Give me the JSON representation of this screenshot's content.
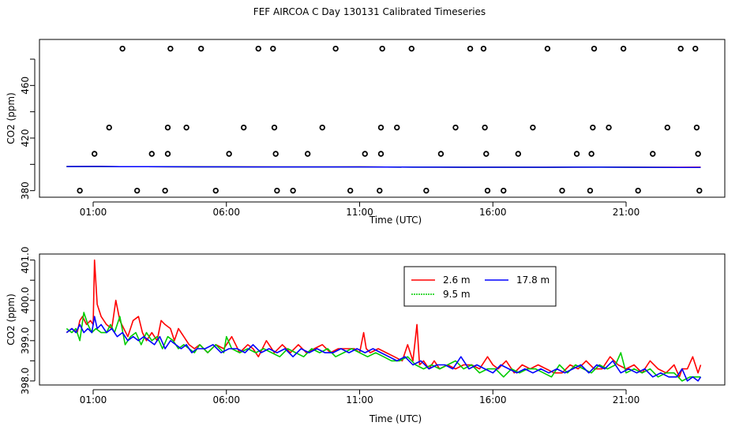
{
  "page": {
    "title": "FEF AIRCOA C  Day 130131  Calibrated Timeseries"
  },
  "colors": {
    "series_2_6": "#ff0000",
    "series_9_5": "#00cc00",
    "series_17_8": "#0000ff",
    "axis": "#000000"
  },
  "chart_data": [
    {
      "id": "top",
      "type": "scatter",
      "title": "",
      "xlabel": "Time (UTC)",
      "ylabel": "CO2 (ppm)",
      "xlim": [
        0,
        24
      ],
      "ylim": [
        375,
        495
      ],
      "x_ticks": [
        1,
        6,
        11,
        16,
        21
      ],
      "x_tick_labels": [
        "01:00",
        "06:00",
        "11:00",
        "16:00",
        "21:00"
      ],
      "y_ticks": [
        380,
        420,
        460
      ],
      "y_tick_labels": [
        "380",
        "420",
        "460"
      ],
      "y_ticks_minor": [
        400,
        440,
        480
      ],
      "points": [
        {
          "x": 0.5,
          "y": 380
        },
        {
          "x": 1.05,
          "y": 408
        },
        {
          "x": 1.6,
          "y": 428
        },
        {
          "x": 2.1,
          "y": 488
        },
        {
          "x": 2.65,
          "y": 380
        },
        {
          "x": 3.2,
          "y": 408
        },
        {
          "x": 3.7,
          "y": 380
        },
        {
          "x": 3.8,
          "y": 408
        },
        {
          "x": 3.8,
          "y": 428
        },
        {
          "x": 3.9,
          "y": 488
        },
        {
          "x": 4.5,
          "y": 428
        },
        {
          "x": 5.05,
          "y": 488
        },
        {
          "x": 5.6,
          "y": 380
        },
        {
          "x": 6.1,
          "y": 408
        },
        {
          "x": 6.65,
          "y": 428
        },
        {
          "x": 7.2,
          "y": 488
        },
        {
          "x": 7.75,
          "y": 488
        },
        {
          "x": 7.8,
          "y": 428
        },
        {
          "x": 7.85,
          "y": 408
        },
        {
          "x": 7.9,
          "y": 380
        },
        {
          "x": 8.5,
          "y": 380
        },
        {
          "x": 9.05,
          "y": 408
        },
        {
          "x": 9.6,
          "y": 428
        },
        {
          "x": 10.1,
          "y": 488
        },
        {
          "x": 10.65,
          "y": 380
        },
        {
          "x": 11.2,
          "y": 408
        },
        {
          "x": 11.75,
          "y": 380
        },
        {
          "x": 11.8,
          "y": 408
        },
        {
          "x": 11.8,
          "y": 428
        },
        {
          "x": 11.85,
          "y": 488
        },
        {
          "x": 12.4,
          "y": 428
        },
        {
          "x": 12.95,
          "y": 488
        },
        {
          "x": 13.5,
          "y": 380
        },
        {
          "x": 14.05,
          "y": 408
        },
        {
          "x": 14.6,
          "y": 428
        },
        {
          "x": 15.15,
          "y": 488
        },
        {
          "x": 15.65,
          "y": 488
        },
        {
          "x": 15.7,
          "y": 428
        },
        {
          "x": 15.75,
          "y": 408
        },
        {
          "x": 15.8,
          "y": 380
        },
        {
          "x": 16.4,
          "y": 380
        },
        {
          "x": 16.95,
          "y": 408
        },
        {
          "x": 17.5,
          "y": 428
        },
        {
          "x": 18.05,
          "y": 488
        },
        {
          "x": 18.6,
          "y": 380
        },
        {
          "x": 19.15,
          "y": 408
        },
        {
          "x": 19.65,
          "y": 380
        },
        {
          "x": 19.7,
          "y": 408
        },
        {
          "x": 19.75,
          "y": 428
        },
        {
          "x": 19.8,
          "y": 488
        },
        {
          "x": 20.35,
          "y": 428
        },
        {
          "x": 20.9,
          "y": 488
        },
        {
          "x": 21.45,
          "y": 380
        },
        {
          "x": 22.0,
          "y": 408
        },
        {
          "x": 22.55,
          "y": 428
        },
        {
          "x": 23.05,
          "y": 488
        },
        {
          "x": 23.6,
          "y": 488
        },
        {
          "x": 23.65,
          "y": 428
        },
        {
          "x": 23.7,
          "y": 408
        },
        {
          "x": 23.75,
          "y": 380
        }
      ],
      "baseline_series": [
        {
          "name": "2.6 m",
          "x": [
            0,
            1,
            2,
            3,
            4,
            5,
            6,
            7,
            8,
            9,
            10,
            11,
            12,
            13,
            14,
            15,
            16,
            17,
            18,
            19,
            20,
            21,
            22,
            23,
            23.8
          ],
          "values": [
            399.2,
            399.3,
            399.1,
            399.0,
            398.9,
            398.9,
            398.8,
            398.8,
            398.7,
            398.7,
            398.7,
            398.8,
            398.6,
            398.5,
            398.4,
            398.3,
            398.4,
            398.3,
            398.3,
            398.4,
            398.5,
            398.4,
            398.3,
            398.3,
            398.4
          ]
        },
        {
          "name": "9.5 m",
          "x": [
            0,
            1,
            2,
            3,
            4,
            5,
            6,
            7,
            8,
            9,
            10,
            11,
            12,
            13,
            14,
            15,
            16,
            17,
            18,
            19,
            20,
            21,
            22,
            23,
            23.8
          ],
          "values": [
            399.2,
            399.2,
            399.1,
            399.0,
            398.9,
            398.8,
            398.8,
            398.7,
            398.7,
            398.7,
            398.7,
            398.7,
            398.6,
            398.4,
            398.4,
            398.3,
            398.3,
            398.3,
            398.2,
            398.4,
            398.4,
            398.3,
            398.2,
            398.1,
            398.1
          ]
        },
        {
          "name": "17.8 m",
          "x": [
            0,
            1,
            2,
            3,
            4,
            5,
            6,
            7,
            8,
            9,
            10,
            11,
            12,
            13,
            14,
            15,
            16,
            17,
            18,
            19,
            20,
            21,
            22,
            23,
            23.8
          ],
          "values": [
            399.2,
            399.3,
            399.1,
            399.0,
            398.9,
            398.8,
            398.8,
            398.7,
            398.7,
            398.7,
            398.7,
            398.7,
            398.6,
            398.4,
            398.4,
            398.3,
            398.3,
            398.3,
            398.3,
            398.4,
            398.4,
            398.3,
            398.2,
            398.1,
            398.1
          ]
        }
      ]
    },
    {
      "id": "bottom",
      "type": "line",
      "title": "",
      "xlabel": "Time (UTC)",
      "ylabel": "CO2 (ppm)",
      "xlim": [
        0,
        24
      ],
      "ylim": [
        397.9,
        401.15
      ],
      "x_ticks": [
        1,
        6,
        11,
        16,
        21
      ],
      "x_tick_labels": [
        "01:00",
        "06:00",
        "11:00",
        "16:00",
        "21:00"
      ],
      "y_ticks": [
        398.0,
        399.0,
        400.0,
        401.0
      ],
      "y_tick_labels": [
        "398.0",
        "399.0",
        "400.0",
        "401.0"
      ],
      "y_ticks_minor": [
        398.5,
        399.5,
        400.5
      ],
      "legend": {
        "position": "top-center",
        "entries": [
          "2.6 m",
          "9.5 m",
          "17.8 m"
        ]
      },
      "series": [
        {
          "name": "2.6 m",
          "color": "#ff0000",
          "x": [
            0.0,
            0.2,
            0.4,
            0.5,
            0.6,
            0.75,
            0.9,
            1.0,
            1.05,
            1.15,
            1.3,
            1.5,
            1.7,
            1.85,
            2.0,
            2.15,
            2.3,
            2.5,
            2.7,
            2.85,
            3.0,
            3.2,
            3.4,
            3.55,
            3.7,
            3.9,
            4.05,
            4.2,
            4.4,
            4.6,
            4.8,
            5.0,
            5.3,
            5.6,
            5.9,
            6.2,
            6.5,
            6.8,
            7.0,
            7.2,
            7.5,
            7.8,
            8.1,
            8.4,
            8.7,
            9.0,
            9.3,
            9.6,
            9.9,
            10.2,
            10.5,
            10.8,
            11.0,
            11.15,
            11.25,
            11.4,
            11.7,
            12.0,
            12.3,
            12.6,
            12.8,
            13.0,
            13.15,
            13.25,
            13.4,
            13.6,
            13.8,
            14.0,
            14.3,
            14.6,
            14.9,
            15.2,
            15.5,
            15.8,
            16.0,
            16.2,
            16.5,
            16.8,
            17.1,
            17.4,
            17.7,
            18.0,
            18.3,
            18.6,
            18.9,
            19.2,
            19.5,
            19.8,
            20.1,
            20.4,
            20.7,
            21.0,
            21.3,
            21.6,
            21.9,
            22.2,
            22.5,
            22.8,
            23.0,
            23.1,
            23.3,
            23.5,
            23.7,
            23.8
          ],
          "values": [
            399.2,
            399.3,
            399.2,
            399.5,
            399.6,
            399.4,
            399.5,
            399.4,
            401.0,
            399.9,
            399.6,
            399.4,
            399.3,
            400.0,
            399.5,
            399.3,
            399.1,
            399.5,
            399.6,
            399.2,
            399.0,
            399.2,
            399.0,
            399.5,
            399.4,
            399.3,
            399.0,
            399.3,
            399.1,
            398.9,
            398.8,
            398.9,
            398.7,
            398.9,
            398.8,
            399.1,
            398.7,
            398.9,
            398.8,
            398.6,
            399.0,
            398.7,
            398.9,
            398.7,
            398.9,
            398.7,
            398.8,
            398.9,
            398.7,
            398.8,
            398.8,
            398.8,
            398.7,
            399.2,
            398.8,
            398.7,
            398.8,
            398.7,
            398.6,
            398.5,
            398.9,
            398.5,
            399.4,
            398.4,
            398.5,
            398.3,
            398.5,
            398.3,
            398.4,
            398.3,
            398.4,
            398.4,
            398.3,
            398.6,
            398.4,
            398.3,
            398.5,
            398.2,
            398.4,
            398.3,
            398.4,
            398.3,
            398.2,
            398.2,
            398.4,
            398.3,
            398.5,
            398.3,
            398.3,
            398.6,
            398.4,
            398.3,
            398.4,
            398.2,
            398.5,
            398.3,
            398.2,
            398.4,
            398.1,
            398.3,
            398.3,
            398.6,
            398.2,
            398.4
          ]
        },
        {
          "name": "9.5 m",
          "color": "#00cc00",
          "x": [
            0.0,
            0.2,
            0.35,
            0.5,
            0.65,
            0.8,
            0.95,
            1.1,
            1.3,
            1.5,
            1.65,
            1.8,
            2.0,
            2.2,
            2.4,
            2.6,
            2.8,
            3.0,
            3.2,
            3.4,
            3.6,
            3.8,
            4.0,
            4.2,
            4.4,
            4.6,
            4.8,
            5.0,
            5.3,
            5.6,
            5.9,
            6.0,
            6.2,
            6.5,
            6.8,
            7.1,
            7.4,
            7.7,
            8.0,
            8.3,
            8.6,
            8.9,
            9.2,
            9.5,
            9.8,
            10.1,
            10.4,
            10.7,
            11.0,
            11.3,
            11.6,
            11.9,
            12.2,
            12.5,
            12.8,
            13.1,
            13.4,
            13.7,
            14.0,
            14.3,
            14.6,
            14.9,
            15.2,
            15.5,
            15.8,
            16.1,
            16.4,
            16.7,
            17.0,
            17.3,
            17.6,
            17.9,
            18.2,
            18.5,
            18.8,
            19.1,
            19.4,
            19.7,
            20.0,
            20.3,
            20.6,
            20.8,
            21.0,
            21.3,
            21.6,
            21.9,
            22.2,
            22.5,
            22.8,
            23.1,
            23.4,
            23.6,
            23.8
          ],
          "values": [
            399.3,
            399.2,
            399.3,
            399.0,
            399.7,
            399.4,
            399.2,
            399.3,
            399.2,
            399.2,
            399.4,
            399.2,
            399.6,
            398.9,
            399.1,
            399.2,
            398.9,
            399.2,
            399.0,
            399.1,
            398.8,
            399.1,
            399.0,
            398.8,
            398.9,
            398.8,
            398.7,
            398.9,
            398.7,
            398.9,
            398.7,
            399.1,
            398.8,
            398.7,
            398.8,
            398.7,
            398.8,
            398.7,
            398.6,
            398.8,
            398.7,
            398.6,
            398.8,
            398.7,
            398.8,
            398.6,
            398.7,
            398.8,
            398.7,
            398.6,
            398.7,
            398.6,
            398.5,
            398.5,
            398.6,
            398.4,
            398.3,
            398.4,
            398.3,
            398.4,
            398.5,
            398.3,
            398.4,
            398.2,
            398.3,
            398.3,
            398.1,
            398.3,
            398.2,
            398.3,
            398.3,
            398.2,
            398.1,
            398.4,
            398.2,
            398.4,
            398.3,
            398.2,
            398.4,
            398.3,
            398.4,
            398.7,
            398.2,
            398.3,
            398.2,
            398.3,
            398.1,
            398.2,
            398.2,
            398.0,
            398.1,
            398.1,
            398.1
          ]
        },
        {
          "name": "17.8 m",
          "color": "#0000ff",
          "x": [
            0.0,
            0.2,
            0.35,
            0.5,
            0.65,
            0.8,
            0.95,
            1.05,
            1.15,
            1.3,
            1.5,
            1.7,
            1.9,
            2.1,
            2.3,
            2.5,
            2.7,
            2.9,
            3.1,
            3.3,
            3.5,
            3.7,
            3.9,
            4.1,
            4.3,
            4.5,
            4.7,
            4.9,
            5.2,
            5.5,
            5.8,
            6.1,
            6.4,
            6.7,
            7.0,
            7.3,
            7.6,
            7.9,
            8.2,
            8.5,
            8.8,
            9.1,
            9.4,
            9.7,
            10.0,
            10.3,
            10.6,
            10.9,
            11.2,
            11.5,
            11.8,
            12.1,
            12.4,
            12.7,
            13.0,
            13.3,
            13.6,
            13.9,
            14.2,
            14.5,
            14.8,
            15.1,
            15.4,
            15.7,
            16.0,
            16.3,
            16.6,
            16.9,
            17.2,
            17.5,
            17.8,
            18.1,
            18.4,
            18.7,
            19.0,
            19.3,
            19.6,
            19.9,
            20.2,
            20.5,
            20.8,
            21.1,
            21.4,
            21.7,
            22.0,
            22.3,
            22.6,
            22.9,
            23.1,
            23.3,
            23.5,
            23.7,
            23.8
          ],
          "values": [
            399.2,
            399.3,
            399.2,
            399.4,
            399.2,
            399.3,
            399.2,
            399.6,
            399.3,
            399.4,
            399.2,
            399.3,
            399.1,
            399.2,
            399.0,
            399.1,
            399.0,
            399.1,
            399.0,
            398.9,
            399.1,
            398.8,
            399.0,
            398.9,
            398.8,
            398.9,
            398.7,
            398.8,
            398.8,
            398.9,
            398.7,
            398.8,
            398.8,
            398.7,
            398.9,
            398.7,
            398.8,
            398.7,
            398.8,
            398.6,
            398.8,
            398.7,
            398.8,
            398.7,
            398.7,
            398.8,
            398.7,
            398.8,
            398.7,
            398.8,
            398.7,
            398.6,
            398.5,
            398.6,
            398.4,
            398.5,
            398.3,
            398.4,
            398.4,
            398.3,
            398.6,
            398.3,
            398.4,
            398.3,
            398.2,
            398.4,
            398.3,
            398.2,
            398.3,
            398.2,
            398.3,
            398.2,
            398.3,
            398.2,
            398.3,
            398.4,
            398.2,
            398.4,
            398.3,
            398.5,
            398.2,
            398.3,
            398.2,
            398.3,
            398.1,
            398.2,
            398.1,
            398.1,
            398.3,
            398.0,
            398.1,
            398.0,
            398.1
          ]
        }
      ]
    }
  ]
}
